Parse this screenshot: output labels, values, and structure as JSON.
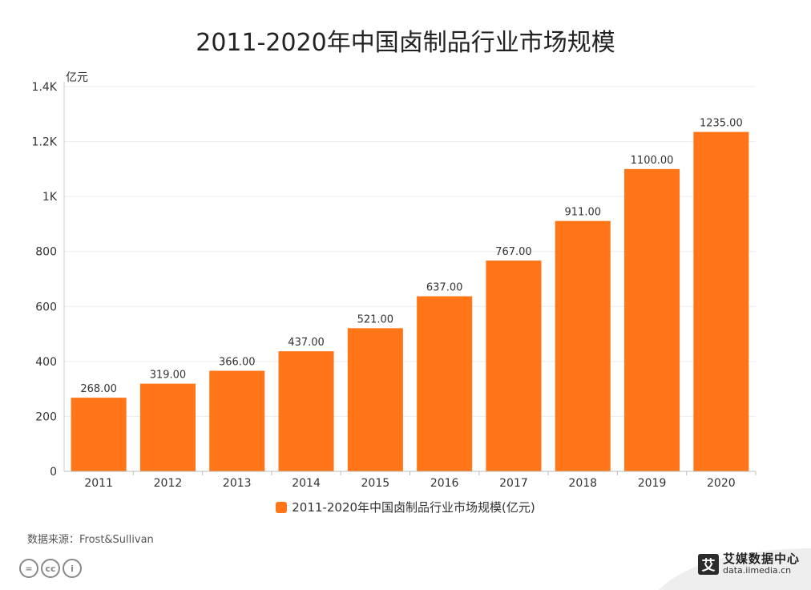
{
  "header": {
    "title": "2011-2020年中国卤制品行业市场规模"
  },
  "chart_data": {
    "type": "bar",
    "title": "2011-2020年中国卤制品行业市场规模",
    "unit_label": "亿元",
    "xlabel": "",
    "ylabel": "亿元",
    "categories": [
      "2011",
      "2012",
      "2013",
      "2014",
      "2015",
      "2016",
      "2017",
      "2018",
      "2019",
      "2020"
    ],
    "series": [
      {
        "name": "2011-2020年中国卤制品行业市场规模(亿元)",
        "values": [
          268.0,
          319.0,
          366.0,
          437.0,
          521.0,
          637.0,
          767.0,
          911.0,
          1100.0,
          1235.0
        ],
        "value_labels": [
          "268.00",
          "319.00",
          "366.00",
          "437.00",
          "521.00",
          "637.00",
          "767.00",
          "911.00",
          "1100.00",
          "1235.00"
        ]
      }
    ],
    "ylim": [
      0,
      1400
    ],
    "yticks": [
      0,
      200,
      400,
      600,
      800,
      1000,
      1200,
      1400
    ],
    "ytick_labels": [
      "0",
      "200",
      "400",
      "600",
      "800",
      "1K",
      "1.2K",
      "1.4K"
    ],
    "grid": true,
    "legend_position": "bottom-center",
    "bar_color": "#ff7517"
  },
  "legend": {
    "label": "2011-2020年中国卤制品行业市场规模(亿元)"
  },
  "footer": {
    "source": "数据来源：Frost&Sullivan",
    "license_icons": [
      "=",
      "cc",
      "i"
    ],
    "brand_name": "艾媒数据中心",
    "brand_url": "data.iimedia.cn",
    "brand_logo_char": "艾"
  }
}
